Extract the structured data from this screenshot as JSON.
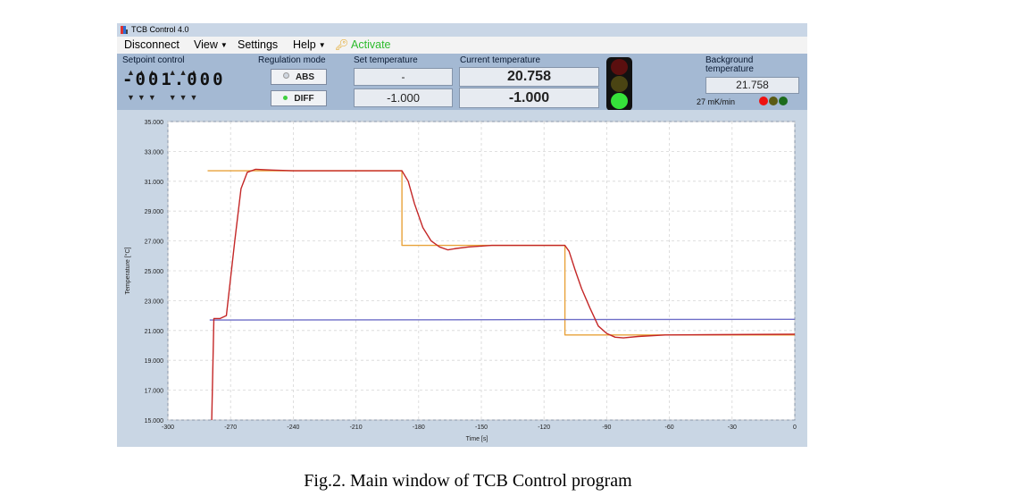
{
  "window": {
    "title": "TCB Control 4.0"
  },
  "menu": {
    "items": [
      {
        "label": "Disconnect",
        "has_arrow": false
      },
      {
        "label": "View",
        "has_arrow": true
      },
      {
        "label": "Settings",
        "has_arrow": false
      },
      {
        "label": "Help",
        "has_arrow": true
      }
    ],
    "activate": "Activate",
    "activate_color": "#2dbb2d"
  },
  "controls": {
    "setpoint_label": "Setpoint control",
    "setpoint_digits": "-001.000",
    "regulation_label": "Regulation mode",
    "abs_label": "ABS",
    "diff_label": "DIFF",
    "diff_active": true,
    "set_temp_label": "Set temperature",
    "set_temp_abs": "-",
    "set_temp_diff": "-1.000",
    "current_temp_label": "Current temperature",
    "current_temp_abs": "20.758",
    "current_temp_diff": "-1.000",
    "traffic_light": "green",
    "background_label": "Background temperature",
    "background_value": "21.758",
    "rate": "27 mK/min"
  },
  "chart_data": {
    "type": "line",
    "xlabel": "Time [s]",
    "ylabel": "Temperature [°C]",
    "xlim": [
      -300,
      0
    ],
    "ylim": [
      15,
      35
    ],
    "x_ticks": [
      -300,
      -270,
      -240,
      -210,
      -180,
      -150,
      -120,
      -90,
      -60,
      -30,
      0
    ],
    "y_ticks": [
      "15.000",
      "17.000",
      "19.000",
      "21.000",
      "23.000",
      "25.000",
      "27.000",
      "29.000",
      "31.000",
      "33.000",
      "35.000"
    ],
    "grid": true,
    "series": [
      {
        "color": "#e8a23a",
        "points": [
          [
            -281,
            31.7
          ],
          [
            -188,
            31.7
          ],
          [
            -188,
            26.7
          ],
          [
            -110,
            26.7
          ],
          [
            -110,
            20.7
          ],
          [
            0,
            20.7
          ]
        ]
      },
      {
        "color": "#6e6ec8",
        "points": [
          [
            -280,
            21.7
          ],
          [
            0,
            21.75
          ]
        ]
      },
      {
        "color": "#c42727",
        "points": [
          [
            -279,
            15
          ],
          [
            -278,
            21.8
          ],
          [
            -275,
            21.8
          ],
          [
            -272,
            22
          ],
          [
            -268,
            27
          ],
          [
            -265,
            30.5
          ],
          [
            -262,
            31.6
          ],
          [
            -258,
            31.8
          ],
          [
            -250,
            31.75
          ],
          [
            -240,
            31.7
          ],
          [
            -188,
            31.7
          ],
          [
            -185,
            31
          ],
          [
            -182,
            29.5
          ],
          [
            -178,
            27.9
          ],
          [
            -174,
            27
          ],
          [
            -170,
            26.6
          ],
          [
            -166,
            26.4
          ],
          [
            -162,
            26.5
          ],
          [
            -156,
            26.6
          ],
          [
            -145,
            26.7
          ],
          [
            -110,
            26.7
          ],
          [
            -108,
            26.3
          ],
          [
            -105,
            25
          ],
          [
            -102,
            23.8
          ],
          [
            -98,
            22.5
          ],
          [
            -94,
            21.3
          ],
          [
            -90,
            20.8
          ],
          [
            -86,
            20.55
          ],
          [
            -82,
            20.5
          ],
          [
            -75,
            20.6
          ],
          [
            -62,
            20.7
          ],
          [
            -40,
            20.72
          ],
          [
            0,
            20.75
          ]
        ]
      }
    ]
  },
  "caption": "Fig.2. Main window of TCB Control program"
}
